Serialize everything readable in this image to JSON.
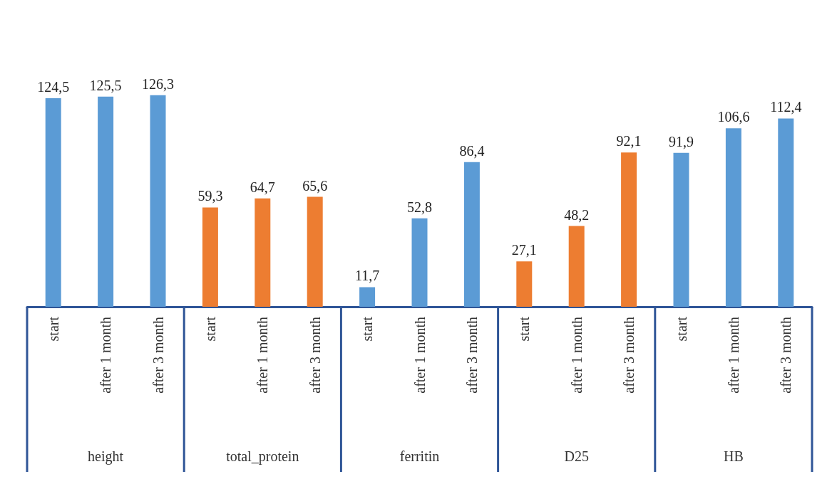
{
  "chart_data": {
    "type": "bar",
    "categories": [
      "start",
      "after 1 month",
      "after 3 month",
      "start",
      "after 1 month",
      "after 3 month",
      "start",
      "after 1 month",
      "after 3 month",
      "start",
      "after 1 month",
      "after 3 month",
      "start",
      "after 1 month",
      "after 3 month"
    ],
    "values": [
      124.5,
      125.5,
      126.3,
      59.3,
      64.7,
      65.6,
      11.7,
      52.8,
      86.4,
      27.1,
      48.2,
      92.1,
      91.9,
      106.6,
      112.4
    ],
    "value_labels": [
      "124,5",
      "125,5",
      "126,3",
      "59,3",
      "64,7",
      "65,6",
      "11,7",
      "52,8",
      "86,4",
      "27,1",
      "48,2",
      "92,1",
      "91,9",
      "106,6",
      "112,4"
    ],
    "colors": [
      "#5b9bd5",
      "#5b9bd5",
      "#5b9bd5",
      "#ed7d31",
      "#ed7d31",
      "#ed7d31",
      "#5b9bd5",
      "#5b9bd5",
      "#5b9bd5",
      "#ed7d31",
      "#ed7d31",
      "#ed7d31",
      "#5b9bd5",
      "#5b9bd5",
      "#5b9bd5"
    ],
    "annotations": [
      "height",
      "total_protein",
      "ferritin",
      "D25",
      "HB"
    ]
  }
}
